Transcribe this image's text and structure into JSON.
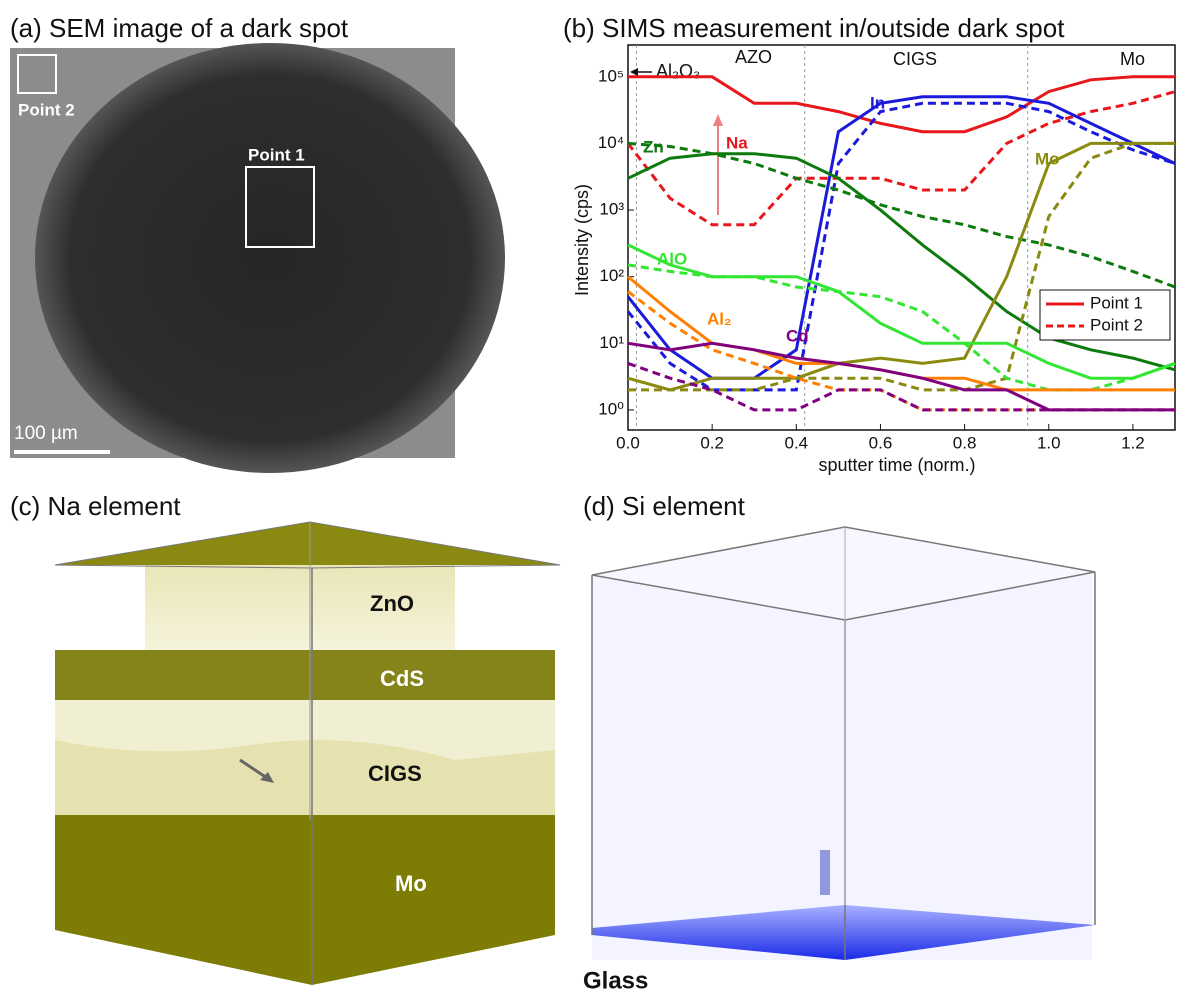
{
  "panel_a": {
    "title": "(a) SEM image of a dark spot",
    "point_2": "Point 2",
    "point_1": "Point 1",
    "scale_bar": "100 µm"
  },
  "chart_data": {
    "type": "line",
    "title": "(b) SIMS measurement in/outside dark spot",
    "x_label": "sputter time (norm.)",
    "y_label": "Intensity (cps)",
    "log_y": true,
    "xlim": [
      0,
      1.3
    ],
    "ylim": [
      0.5,
      300000
    ],
    "xticks": [
      {
        "value": 0,
        "label": "0.0"
      },
      0.2,
      0.4,
      0.6,
      0.8,
      {
        "value": 1,
        "label": "1.0"
      },
      1.2
    ],
    "yticks": [
      {
        "value": 1,
        "label": "10⁰"
      },
      {
        "value": 10,
        "label": "10¹"
      },
      {
        "value": 100,
        "label": "10²"
      },
      {
        "value": 1000,
        "label": "10³"
      },
      {
        "value": 10000,
        "label": "10⁴"
      },
      {
        "value": 100000,
        "label": "10⁵"
      }
    ],
    "boundaries": [
      0.02,
      0.42,
      0.95
    ],
    "regions": [
      "Al₂O₃",
      "AZO",
      "CIGS",
      "Mo"
    ],
    "legend": [
      "Point 1",
      "Point 2"
    ],
    "x": [
      0,
      0.1,
      0.2,
      0.3,
      0.4,
      0.5,
      0.6,
      0.7,
      0.8,
      0.9,
      1.0,
      1.1,
      1.2,
      1.3
    ],
    "series": [
      {
        "name": "Na",
        "color": "#e8171b",
        "point1": [
          100000,
          100000,
          100000,
          40000,
          40000,
          30000,
          20000,
          15000,
          15000,
          25000,
          60000,
          90000,
          100000,
          100000
        ],
        "point2": [
          10000,
          1500,
          600,
          600,
          3000,
          3000,
          3000,
          2000,
          2000,
          10000,
          20000,
          30000,
          40000,
          60000
        ]
      },
      {
        "name": "In",
        "color": "#1a1adb",
        "point1": [
          50,
          8,
          3,
          3,
          8,
          15000,
          40000,
          50000,
          50000,
          50000,
          40000,
          20000,
          10000,
          5000
        ],
        "point2": [
          30,
          5,
          2,
          2,
          2,
          5000,
          30000,
          40000,
          40000,
          40000,
          30000,
          15000,
          8000,
          5000
        ]
      },
      {
        "name": "Zn",
        "color": "#0d7a0d",
        "point1": [
          3000,
          6000,
          7000,
          7000,
          6000,
          3000,
          1000,
          300,
          100,
          30,
          12,
          8,
          6,
          4
        ],
        "point2": [
          10000,
          9000,
          7000,
          5000,
          3000,
          2000,
          1200,
          800,
          600,
          400,
          300,
          200,
          120,
          70
        ]
      },
      {
        "name": "Mo",
        "color": "#8a8a10",
        "point1": [
          3,
          2,
          3,
          3,
          3,
          5,
          6,
          5,
          6,
          100,
          5000,
          10000,
          10000,
          10000
        ],
        "point2": [
          2,
          2,
          2,
          2,
          3,
          3,
          3,
          2,
          2,
          3,
          800,
          6000,
          10000,
          10000
        ]
      },
      {
        "name": "AlO",
        "color": "#33e633",
        "point1": [
          300,
          150,
          100,
          100,
          100,
          60,
          20,
          10,
          10,
          10,
          5,
          3,
          3,
          5
        ],
        "point2": [
          150,
          120,
          100,
          100,
          70,
          60,
          50,
          30,
          10,
          3,
          2,
          2,
          3,
          5
        ]
      },
      {
        "name": "Al₂",
        "color": "#ff8000",
        "point1": [
          100,
          30,
          10,
          8,
          5,
          5,
          4,
          3,
          3,
          2,
          2,
          2,
          2,
          2
        ],
        "point2": [
          60,
          20,
          8,
          5,
          3,
          2,
          2,
          1,
          1,
          1,
          1,
          1,
          1,
          1
        ]
      },
      {
        "name": "Cd",
        "color": "#800080",
        "point1": [
          10,
          8,
          10,
          8,
          6,
          5,
          4,
          3,
          2,
          2,
          1,
          1,
          1,
          1
        ],
        "point2": [
          5,
          3,
          2,
          1,
          1,
          2,
          2,
          1,
          1,
          1,
          1,
          1,
          1,
          1
        ]
      }
    ]
  },
  "panel_c": {
    "title": "(c) Na element",
    "layers": [
      "ZnO",
      "CdS",
      "CIGS",
      "Mo"
    ]
  },
  "panel_d": {
    "title": "(d) Si element",
    "label": "Glass"
  }
}
